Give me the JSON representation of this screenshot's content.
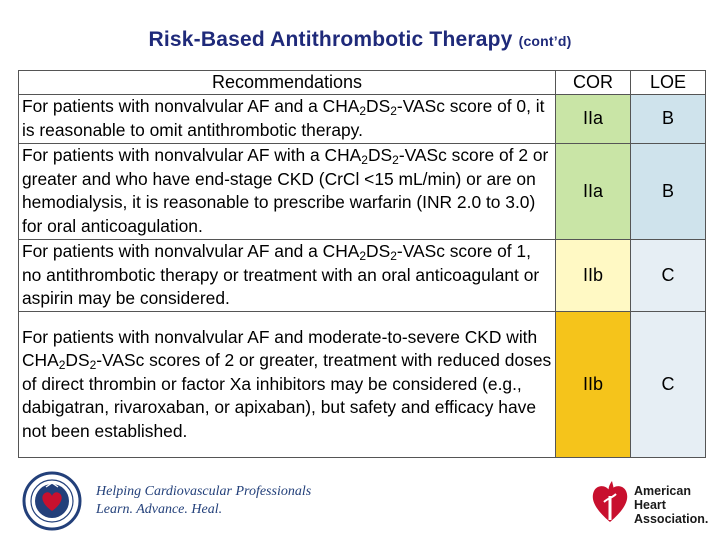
{
  "title": {
    "main": "Risk-Based Antithrombotic Therapy",
    "suffix": "(cont’d)"
  },
  "table": {
    "headers": {
      "recommendations": "Recommendations",
      "cor": "COR",
      "loe": "LOE"
    },
    "rows": [
      {
        "pre": "For patients with nonvalvular AF and a CHA",
        "s1": "2",
        "mid": "DS",
        "s2": "2",
        "post": "-VASc score of 0, it is reasonable to omit antithrombotic therapy.",
        "cor": "IIa",
        "loe": "B"
      },
      {
        "pre": "For patients with nonvalvular AF with a CHA",
        "s1": "2",
        "mid": "DS",
        "s2": "2",
        "post": "-VASc score of 2 or greater and who have end-stage CKD (CrCl <15 mL/min) or are on hemodialysis, it is reasonable to prescribe warfarin (INR 2.0 to 3.0) for oral anticoagulation.",
        "cor": "IIa",
        "loe": "B"
      },
      {
        "pre": "For patients with nonvalvular AF and a CHA",
        "s1": "2",
        "mid": "DS",
        "s2": "2",
        "post": "-VASc score of 1, no antithrombotic therapy or treatment with an oral anticoagulant or aspirin may be considered.",
        "cor": "IIb",
        "loe": "C"
      },
      {
        "pre": "For patients with nonvalvular AF and moderate-to-severe CKD with CHA",
        "s1": "2",
        "mid": "DS",
        "s2": "2",
        "post": "-VASc scores of 2 or greater, treatment with reduced doses of direct thrombin or factor Xa inhibitors may be considered (e.g., dabigatran, rivaroxaban, or apixaban), but safety and efficacy have not been established.",
        "cor": "IIb",
        "loe": "C"
      }
    ]
  },
  "footer": {
    "tagline_line1": "Helping Cardiovascular Professionals",
    "tagline_line2": "Learn. Advance. Heal.",
    "aha_line1": "American",
    "aha_line2": "Heart",
    "aha_line3": "Association."
  },
  "colors": {
    "title": "#1f2a7a",
    "cor_iia": "#c9e5a6",
    "cor_iib": "#fff9c4",
    "cor_iib_strong": "#f5c41b",
    "loe_b": "#cfe3ec",
    "loe_c": "#e6eef4"
  },
  "icons": {
    "left_logo": "acc-seal-icon",
    "right_logo": "aha-heart-torch-icon"
  }
}
